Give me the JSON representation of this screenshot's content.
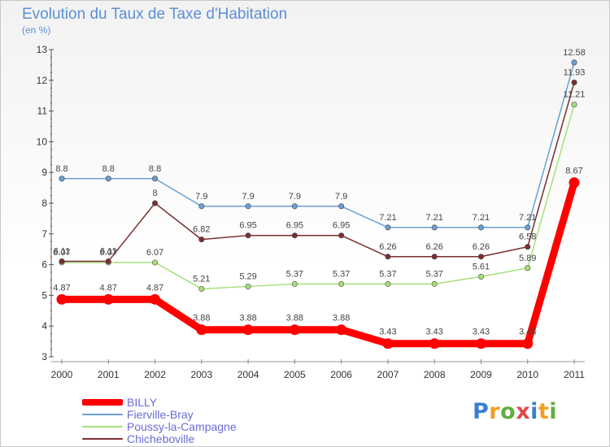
{
  "title": "Evolution du Taux de Taxe d'Habitation",
  "subtitle": "(en %)",
  "logo": {
    "text": "Proxiti",
    "colors": [
      "#3b7fd0",
      "#f0a020",
      "#60b040",
      "#e04848",
      "#3b7fd0",
      "#f0a020",
      "#60b040"
    ]
  },
  "chart_data": {
    "type": "line",
    "title": "Evolution du Taux de Taxe d'Habitation",
    "ylabel": "(en %)",
    "xlabel": "",
    "ylim": [
      3,
      13
    ],
    "yticks": [
      "3",
      "4",
      "5",
      "6",
      "7",
      "8",
      "9",
      "10",
      "11",
      "12",
      "13"
    ],
    "x": [
      "2000",
      "2001",
      "2002",
      "2003",
      "2004",
      "2005",
      "2006",
      "2007",
      "2008",
      "2009",
      "2010",
      "2011"
    ],
    "grid": false,
    "legend": "bottom-left",
    "series": [
      {
        "name": "BILLY",
        "color": "#ff0000",
        "values": [
          4.87,
          4.87,
          4.87,
          3.88,
          3.88,
          3.88,
          3.88,
          3.43,
          3.43,
          3.43,
          3.43,
          8.67
        ],
        "labels": [
          "4.87",
          "4.87",
          "4.87",
          "3.88",
          "3.88",
          "3.88",
          "3.88",
          "3.43",
          "3.43",
          "3.43",
          "3.43",
          "8.67"
        ]
      },
      {
        "name": "Fierville-Bray",
        "color": "#6aa0d4",
        "values": [
          8.8,
          8.8,
          8.8,
          7.9,
          7.9,
          7.9,
          7.9,
          7.21,
          7.21,
          7.21,
          7.21,
          12.58
        ],
        "labels": [
          "8.8",
          "8.8",
          "8.8",
          "7.9",
          "7.9",
          "7.9",
          "7.9",
          "7.21",
          "7.21",
          "7.21",
          "7.21",
          "12.58"
        ]
      },
      {
        "name": "Poussy-la-Campagne",
        "color": "#a6e07a",
        "values": [
          6.07,
          6.07,
          6.07,
          5.21,
          5.29,
          5.37,
          5.37,
          5.37,
          5.37,
          5.61,
          5.89,
          11.21
        ],
        "labels": [
          "6.07",
          "6.07",
          "6.07",
          "5.21",
          "5.29",
          "5.37",
          "5.37",
          "5.37",
          "5.37",
          "5.61",
          "5.89",
          "11.21"
        ]
      },
      {
        "name": "Chicheboville",
        "color": "#7a2e2e",
        "values": [
          6.11,
          6.11,
          8,
          6.82,
          6.95,
          6.95,
          6.95,
          6.26,
          6.26,
          6.26,
          6.58,
          11.93
        ],
        "labels": [
          "6.11",
          "6.11",
          "8",
          "6.82",
          "6.95",
          "6.95",
          "6.95",
          "6.26",
          "6.26",
          "6.26",
          "6.58",
          "11.93"
        ]
      }
    ]
  }
}
